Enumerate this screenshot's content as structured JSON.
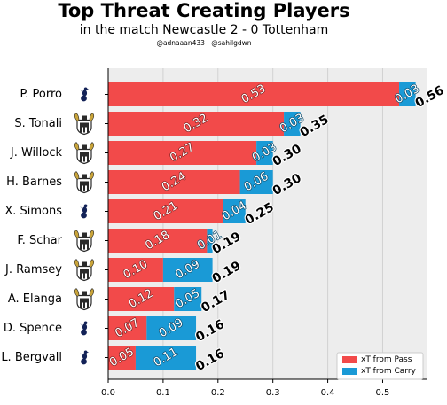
{
  "title": "Top Threat Creating Players",
  "subtitle": "in the match Newcastle 2 - 0 Tottenham",
  "credits": "@adnaaan433  | @sahilgdwn",
  "colors": {
    "pass": "#f24a4a",
    "carry": "#1a9ad6",
    "plot_bg": "#ededed",
    "grid": "#d2d2d2",
    "newcastle": "#2a2a2a",
    "tottenham": "#132257"
  },
  "chart_data": {
    "type": "bar",
    "orientation": "horizontal",
    "stacked": true,
    "categories": [
      "P. Porro",
      "S. Tonali",
      "J. Willock",
      "H. Barnes",
      "X. Simons",
      "F. Schar",
      "J. Ramsey",
      "A. Elanga",
      "D. Spence",
      "L. Bergvall"
    ],
    "team_icons": [
      "tottenham-crest",
      "newcastle-crest",
      "newcastle-crest",
      "newcastle-crest",
      "tottenham-crest",
      "newcastle-crest",
      "newcastle-crest",
      "newcastle-crest",
      "tottenham-crest",
      "tottenham-crest"
    ],
    "series": [
      {
        "name": "xT from Pass",
        "values": [
          0.53,
          0.32,
          0.27,
          0.24,
          0.21,
          0.18,
          0.1,
          0.12,
          0.07,
          0.05
        ],
        "labels": [
          "0.53",
          "0.32",
          "0.27",
          "0.24",
          "0.21",
          "0.18",
          "0.10",
          "0.12",
          "0.07",
          "0.05"
        ]
      },
      {
        "name": "xT from Carry",
        "values": [
          0.03,
          0.03,
          0.03,
          0.06,
          0.04,
          0.01,
          0.09,
          0.05,
          0.09,
          0.11
        ],
        "labels": [
          "0.03",
          "0.03",
          "0.03",
          "0.06",
          "0.04",
          "0.01",
          "0.09",
          "0.05",
          "0.09",
          "0.11"
        ]
      }
    ],
    "totals": [
      "0.56",
      "0.35",
      "0.30",
      "0.30",
      "0.25",
      "0.19",
      "0.19",
      "0.17",
      "0.16",
      "0.16"
    ],
    "xlim": [
      0,
      0.58
    ],
    "xticks": [
      "0.0",
      "0.1",
      "0.2",
      "0.3",
      "0.4",
      "0.5"
    ],
    "xlabel": "",
    "ylabel": "",
    "grid": true,
    "legend_position": "bottom-right"
  }
}
